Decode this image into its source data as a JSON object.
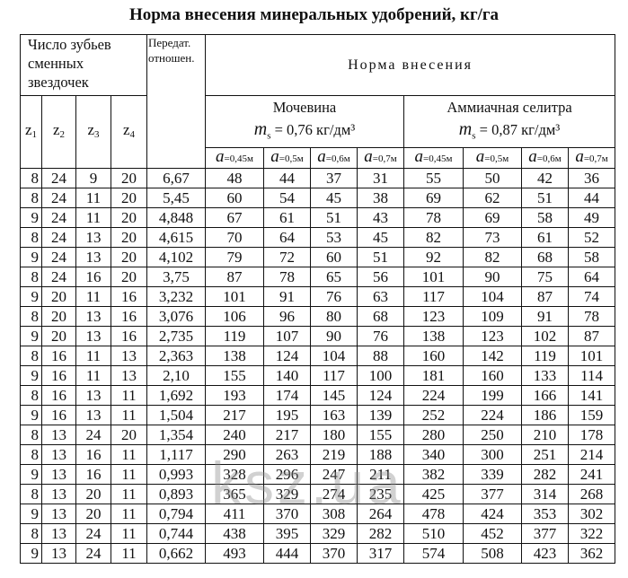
{
  "title": "Норма внесения минеральных удобрений,  кг/га",
  "header": {
    "teeth_group": "Число зубьев сменных звездочек",
    "ratio": "Передат. отношен.",
    "norm": "Норма внесения",
    "z_labels": [
      [
        "z",
        "1"
      ],
      [
        "z",
        "2"
      ],
      [
        "z",
        "3"
      ],
      [
        "z",
        "4"
      ]
    ],
    "urea": {
      "name": "Мочевина",
      "density": "m",
      "density_sub": "s",
      "density_value": "= 0,76 кг/дм³"
    },
    "nitrate": {
      "name": "Аммиачная селитра",
      "density": "m",
      "density_sub": "s",
      "density_value": "= 0,87 кг/дм³"
    },
    "widths": [
      {
        "a": "a",
        "v": "=0,45м"
      },
      {
        "a": "a",
        "v": "=0,5м"
      },
      {
        "a": "a",
        "v": "=0,6м"
      },
      {
        "a": "a",
        "v": "=0,7м"
      },
      {
        "a": "a",
        "v": "=0,45м"
      },
      {
        "a": "a",
        "v": "=0,5м"
      },
      {
        "a": "a",
        "v": "=0,6м"
      },
      {
        "a": "a",
        "v": "=0,7м"
      }
    ]
  },
  "rows": [
    [
      "8",
      "24",
      "9",
      "20",
      "6,67",
      "48",
      "44",
      "37",
      "31",
      "55",
      "50",
      "42",
      "36"
    ],
    [
      "8",
      "24",
      "11",
      "20",
      "5,45",
      "60",
      "54",
      "45",
      "38",
      "69",
      "62",
      "51",
      "44"
    ],
    [
      "9",
      "24",
      "11",
      "20",
      "4,848",
      "67",
      "61",
      "51",
      "43",
      "78",
      "69",
      "58",
      "49"
    ],
    [
      "8",
      "24",
      "13",
      "20",
      "4,615",
      "70",
      "64",
      "53",
      "45",
      "82",
      "73",
      "61",
      "52"
    ],
    [
      "9",
      "24",
      "13",
      "20",
      "4,102",
      "79",
      "72",
      "60",
      "51",
      "92",
      "82",
      "68",
      "58"
    ],
    [
      "8",
      "24",
      "16",
      "20",
      "3,75",
      "87",
      "78",
      "65",
      "56",
      "101",
      "90",
      "75",
      "64"
    ],
    [
      "9",
      "20",
      "11",
      "16",
      "3,232",
      "101",
      "91",
      "76",
      "63",
      "117",
      "104",
      "87",
      "74"
    ],
    [
      "8",
      "20",
      "13",
      "16",
      "3,076",
      "106",
      "96",
      "80",
      "68",
      "123",
      "109",
      "91",
      "78"
    ],
    [
      "9",
      "20",
      "13",
      "16",
      "2,735",
      "119",
      "107",
      "90",
      "76",
      "138",
      "123",
      "102",
      "87"
    ],
    [
      "8",
      "16",
      "11",
      "13",
      "2,363",
      "138",
      "124",
      "104",
      "88",
      "160",
      "142",
      "119",
      "101"
    ],
    [
      "9",
      "16",
      "11",
      "13",
      "2,10",
      "155",
      "140",
      "117",
      "100",
      "181",
      "160",
      "133",
      "114"
    ],
    [
      "8",
      "16",
      "13",
      "11",
      "1,692",
      "193",
      "174",
      "145",
      "124",
      "224",
      "199",
      "166",
      "141"
    ],
    [
      "9",
      "16",
      "13",
      "11",
      "1,504",
      "217",
      "195",
      "163",
      "139",
      "252",
      "224",
      "186",
      "159"
    ],
    [
      "8",
      "13",
      "24",
      "20",
      "1,354",
      "240",
      "217",
      "180",
      "155",
      "280",
      "250",
      "210",
      "178"
    ],
    [
      "8",
      "13",
      "16",
      "11",
      "1,117",
      "290",
      "263",
      "219",
      "188",
      "340",
      "300",
      "251",
      "214"
    ],
    [
      "9",
      "13",
      "16",
      "11",
      "0,993",
      "328",
      "296",
      "247",
      "211",
      "382",
      "339",
      "282",
      "241"
    ],
    [
      "8",
      "13",
      "20",
      "11",
      "0,893",
      "365",
      "329",
      "274",
      "235",
      "425",
      "377",
      "314",
      "268"
    ],
    [
      "9",
      "13",
      "20",
      "11",
      "0,794",
      "411",
      "370",
      "308",
      "264",
      "478",
      "424",
      "353",
      "302"
    ],
    [
      "8",
      "13",
      "24",
      "11",
      "0,744",
      "438",
      "395",
      "329",
      "282",
      "510",
      "452",
      "377",
      "322"
    ],
    [
      "9",
      "13",
      "24",
      "11",
      "0,662",
      "493",
      "444",
      "370",
      "317",
      "574",
      "508",
      "423",
      "362"
    ]
  ],
  "watermark": "ksz.ua"
}
